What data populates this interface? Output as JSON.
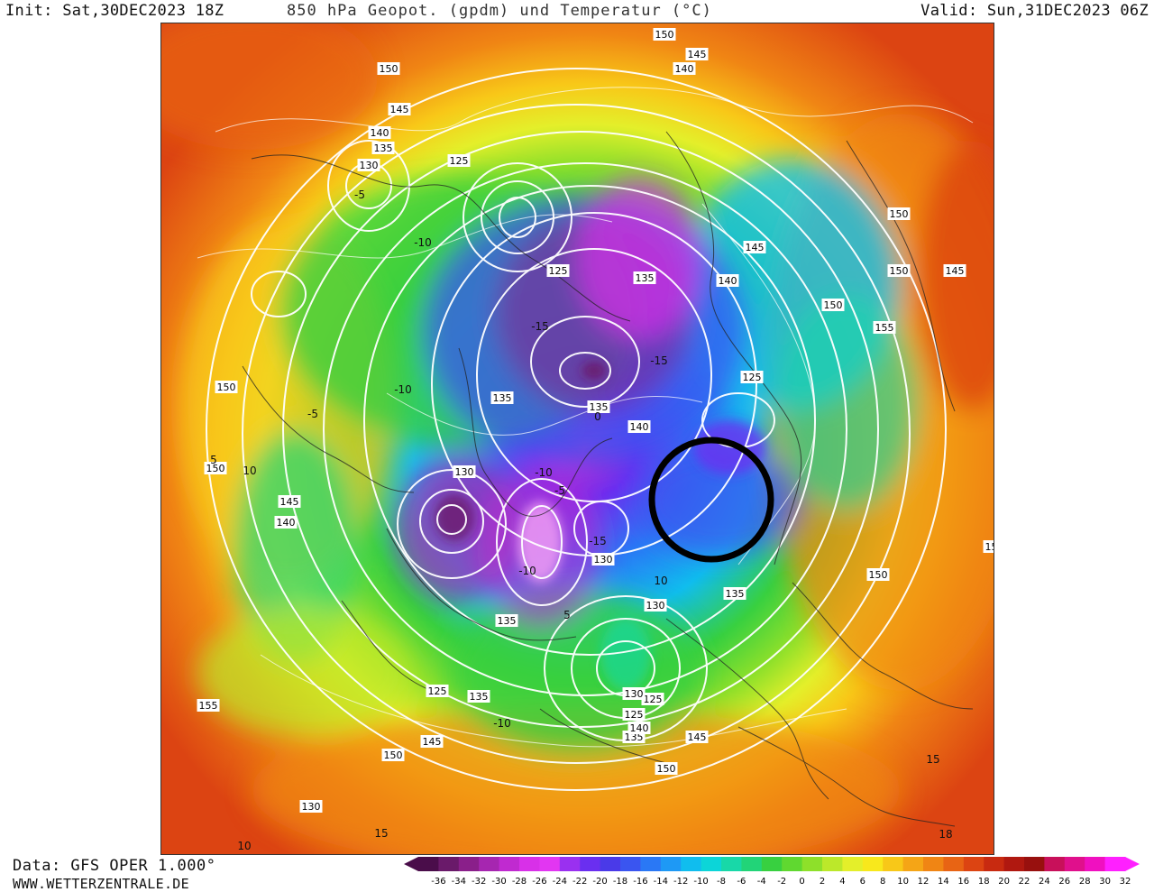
{
  "header": {
    "init": "Init: Sat,30DEC2023 18Z",
    "title": "850 hPa Geopot. (gpdm) und Temperatur (°C)",
    "valid": "Valid: Sun,31DEC2023 06Z"
  },
  "footer": {
    "data_source": "Data: GFS OPER 1.000°",
    "website": "WWW.WETTERZENTRALE.DE"
  },
  "legend": {
    "ticks": [
      "-36",
      "-34",
      "-32",
      "-30",
      "-28",
      "-26",
      "-24",
      "-22",
      "-20",
      "-18",
      "-16",
      "-14",
      "-12",
      "-10",
      "-8",
      "-6",
      "-4",
      "-2",
      "0",
      "2",
      "4",
      "6",
      "8",
      "10",
      "12",
      "14",
      "16",
      "18",
      "20",
      "22",
      "24",
      "26",
      "28",
      "30",
      "32"
    ],
    "colors": [
      "#4a0d4a",
      "#6a1a6a",
      "#8a1f8a",
      "#a626b0",
      "#c02ad0",
      "#d830e8",
      "#e236f2",
      "#9a30f0",
      "#6a2ff0",
      "#4a3ae8",
      "#3a55f0",
      "#2a78f5",
      "#1e99f5",
      "#10bdee",
      "#0cd5d8",
      "#18d8a8",
      "#22d478",
      "#38d040",
      "#60d830",
      "#8ee02a",
      "#bce82a",
      "#e4ef2a",
      "#f8e81c",
      "#f8c818",
      "#f5a516",
      "#f08514",
      "#e86414",
      "#dc4412",
      "#c82a10",
      "#b01810",
      "#98100e",
      "#c8105a",
      "#e0108c",
      "#f010c0",
      "#ff20ff"
    ]
  },
  "map": {
    "contour_color": "#ffffff",
    "highlight_circle_color": "#000000",
    "geopotential_labels": [
      "150",
      "145",
      "140",
      "150",
      "145",
      "140",
      "135",
      "130",
      "125",
      "125",
      "135",
      "145",
      "140",
      "150",
      "145",
      "150",
      "155",
      "150",
      "150",
      "135",
      "135",
      "140",
      "125",
      "130",
      "145",
      "140",
      "150",
      "130",
      "125",
      "135",
      "130",
      "125",
      "135",
      "145",
      "150",
      "155",
      "130",
      "125",
      "135",
      "140",
      "145",
      "150",
      "150",
      "155",
      "135",
      "130"
    ],
    "temperature_labels": [
      "-5",
      "-10",
      "-15",
      "-10",
      "-5",
      "0",
      "5",
      "10",
      "-10",
      "-5",
      "-15",
      "-10",
      "5",
      "10",
      "15",
      "-10",
      "-15",
      "10",
      "15",
      "18"
    ],
    "circle_marker": "highlight-circle"
  }
}
